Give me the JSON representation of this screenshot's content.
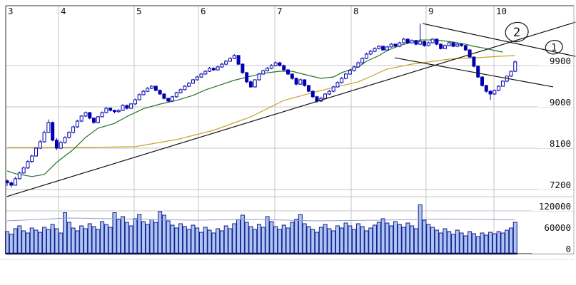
{
  "chart_data": {
    "type": "candlestick",
    "title": "",
    "legend": "none",
    "grid": true,
    "x_axis": {
      "unit": "month",
      "ticks": [
        {
          "label": "3",
          "index": -0.35
        },
        {
          "label": "4",
          "index": 12.44
        },
        {
          "label": "5",
          "index": 30.76
        },
        {
          "label": "6",
          "index": 46.31
        },
        {
          "label": "7",
          "index": 64.8
        },
        {
          "label": "8",
          "index": 83.29
        },
        {
          "label": "9",
          "index": 101.43
        },
        {
          "label": "10",
          "index": 117.85
        }
      ]
    },
    "price_axis": {
      "ticks": [
        9900,
        9000,
        8100,
        7200
      ],
      "visible_range": [
        7050,
        11200
      ]
    },
    "volume_axis": {
      "ticks": [
        120000,
        60000,
        0
      ],
      "visible_range": [
        0,
        160000
      ]
    },
    "candles": [
      [
        7390,
        7420,
        7280,
        7345
      ],
      [
        7345,
        7380,
        7250,
        7295
      ],
      [
        7295,
        7475,
        7290,
        7435
      ],
      [
        7435,
        7590,
        7420,
        7560
      ],
      [
        7560,
        7700,
        7540,
        7670
      ],
      [
        7670,
        7840,
        7650,
        7810
      ],
      [
        7810,
        7960,
        7780,
        7930
      ],
      [
        7930,
        8120,
        7910,
        8100
      ],
      [
        8100,
        8280,
        8080,
        8240
      ],
      [
        8240,
        8480,
        8220,
        8445
      ],
      [
        8445,
        8725,
        8430,
        8660
      ],
      [
        8660,
        8680,
        8250,
        8275
      ],
      [
        8275,
        8320,
        8060,
        8100
      ],
      [
        8100,
        8260,
        8080,
        8225
      ],
      [
        8225,
        8360,
        8200,
        8335
      ],
      [
        8335,
        8470,
        8310,
        8445
      ],
      [
        8445,
        8590,
        8420,
        8565
      ],
      [
        8565,
        8720,
        8540,
        8690
      ],
      [
        8690,
        8820,
        8670,
        8800
      ],
      [
        8800,
        8900,
        8780,
        8875
      ],
      [
        8875,
        8890,
        8730,
        8755
      ],
      [
        8755,
        8770,
        8630,
        8660
      ],
      [
        8660,
        8800,
        8640,
        8785
      ],
      [
        8785,
        8900,
        8770,
        8875
      ],
      [
        8875,
        9000,
        8860,
        8970
      ],
      [
        8970,
        8990,
        8900,
        8925
      ],
      [
        8925,
        8940,
        8860,
        8895
      ],
      [
        8895,
        8950,
        8870,
        8925
      ],
      [
        8925,
        9060,
        8910,
        9030
      ],
      [
        9030,
        9050,
        8940,
        8970
      ],
      [
        8970,
        9080,
        8950,
        9065
      ],
      [
        9065,
        9180,
        9040,
        9155
      ],
      [
        9155,
        9290,
        9140,
        9265
      ],
      [
        9265,
        9370,
        9250,
        9340
      ],
      [
        9340,
        9430,
        9320,
        9405
      ],
      [
        9405,
        9470,
        9390,
        9450
      ],
      [
        9450,
        9460,
        9340,
        9360
      ],
      [
        9360,
        9380,
        9260,
        9280
      ],
      [
        9280,
        9300,
        9160,
        9185
      ],
      [
        9185,
        9200,
        9100,
        9125
      ],
      [
        9125,
        9240,
        9110,
        9220
      ],
      [
        9220,
        9330,
        9200,
        9310
      ],
      [
        9310,
        9400,
        9290,
        9375
      ],
      [
        9375,
        9470,
        9360,
        9450
      ],
      [
        9450,
        9540,
        9430,
        9515
      ],
      [
        9515,
        9610,
        9500,
        9590
      ],
      [
        9590,
        9680,
        9570,
        9650
      ],
      [
        9650,
        9740,
        9630,
        9715
      ],
      [
        9715,
        9800,
        9700,
        9775
      ],
      [
        9775,
        9870,
        9760,
        9840
      ],
      [
        9840,
        9860,
        9780,
        9805
      ],
      [
        9805,
        9900,
        9790,
        9870
      ],
      [
        9870,
        9960,
        9850,
        9930
      ],
      [
        9930,
        10020,
        9910,
        9995
      ],
      [
        9995,
        10080,
        9980,
        10055
      ],
      [
        10055,
        10150,
        10040,
        10120
      ],
      [
        10120,
        10130,
        9910,
        9930
      ],
      [
        9930,
        9950,
        9720,
        9745
      ],
      [
        9745,
        9760,
        9520,
        9545
      ],
      [
        9545,
        9580,
        9410,
        9435
      ],
      [
        9435,
        9600,
        9420,
        9590
      ],
      [
        9590,
        9740,
        9570,
        9715
      ],
      [
        9715,
        9810,
        9700,
        9790
      ],
      [
        9790,
        9870,
        9770,
        9840
      ],
      [
        9840,
        9930,
        9820,
        9900
      ],
      [
        9900,
        9990,
        9880,
        9960
      ],
      [
        9960,
        9980,
        9880,
        9900
      ],
      [
        9900,
        9920,
        9780,
        9805
      ],
      [
        9805,
        9830,
        9690,
        9715
      ],
      [
        9715,
        9730,
        9590,
        9620
      ],
      [
        9620,
        9640,
        9470,
        9495
      ],
      [
        9495,
        9620,
        9480,
        9590
      ],
      [
        9590,
        9600,
        9440,
        9465
      ],
      [
        9465,
        9480,
        9320,
        9340
      ],
      [
        9340,
        9360,
        9190,
        9220
      ],
      [
        9220,
        9240,
        9090,
        9125
      ],
      [
        9125,
        9220,
        9110,
        9185
      ],
      [
        9185,
        9300,
        9170,
        9280
      ],
      [
        9280,
        9370,
        9260,
        9340
      ],
      [
        9340,
        9460,
        9320,
        9435
      ],
      [
        9435,
        9560,
        9420,
        9530
      ],
      [
        9530,
        9650,
        9510,
        9620
      ],
      [
        9620,
        9740,
        9600,
        9715
      ],
      [
        9715,
        9820,
        9700,
        9790
      ],
      [
        9790,
        9900,
        9770,
        9870
      ],
      [
        9870,
        9990,
        9850,
        9960
      ],
      [
        9960,
        10080,
        9940,
        10055
      ],
      [
        10055,
        10180,
        10040,
        10150
      ],
      [
        10150,
        10240,
        10130,
        10210
      ],
      [
        10210,
        10300,
        10190,
        10270
      ],
      [
        10270,
        10340,
        10250,
        10320
      ],
      [
        10320,
        10330,
        10220,
        10240
      ],
      [
        10240,
        10330,
        10220,
        10305
      ],
      [
        10305,
        10390,
        10290,
        10365
      ],
      [
        10365,
        10380,
        10300,
        10320
      ],
      [
        10320,
        10420,
        10300,
        10395
      ],
      [
        10395,
        10500,
        10380,
        10475
      ],
      [
        10475,
        10490,
        10370,
        10395
      ],
      [
        10395,
        10470,
        10380,
        10445
      ],
      [
        10445,
        10460,
        10340,
        10365
      ],
      [
        10365,
        10815,
        10350,
        10425
      ],
      [
        10425,
        10440,
        10310,
        10335
      ],
      [
        10335,
        10420,
        10320,
        10395
      ],
      [
        10395,
        10490,
        10380,
        10475
      ],
      [
        10475,
        10490,
        10340,
        10365
      ],
      [
        10365,
        10380,
        10250,
        10270
      ],
      [
        10270,
        10360,
        10255,
        10335
      ],
      [
        10335,
        10420,
        10320,
        10395
      ],
      [
        10395,
        10410,
        10300,
        10320
      ],
      [
        10320,
        10380,
        10300,
        10365
      ],
      [
        10365,
        10380,
        10310,
        10335
      ],
      [
        10335,
        10350,
        10220,
        10240
      ],
      [
        10240,
        10260,
        10060,
        10085
      ],
      [
        10085,
        10100,
        9860,
        9885
      ],
      [
        9885,
        9900,
        9630,
        9650
      ],
      [
        9650,
        9670,
        9440,
        9465
      ],
      [
        9465,
        9480,
        9310,
        9340
      ],
      [
        9340,
        9360,
        9155,
        9280
      ],
      [
        9280,
        9380,
        9260,
        9360
      ],
      [
        9360,
        9470,
        9340,
        9450
      ],
      [
        9450,
        9580,
        9440,
        9560
      ],
      [
        9560,
        9680,
        9540,
        9670
      ],
      [
        9670,
        9790,
        9650,
        9775
      ],
      [
        9775,
        10010,
        9760,
        9980
      ]
    ],
    "volume": [
      62000,
      55000,
      70000,
      78000,
      64000,
      58000,
      72000,
      66000,
      60000,
      74000,
      68000,
      82000,
      70000,
      58000,
      115000,
      88000,
      72000,
      64000,
      78000,
      70000,
      84000,
      76000,
      68000,
      90000,
      82000,
      74000,
      115000,
      96000,
      104000,
      88000,
      78000,
      98000,
      110000,
      90000,
      82000,
      96000,
      88000,
      118000,
      108000,
      92000,
      80000,
      72000,
      84000,
      76000,
      68000,
      80000,
      72000,
      60000,
      74000,
      66000,
      58000,
      70000,
      64000,
      78000,
      70000,
      84000,
      96000,
      108000,
      88000,
      76000,
      68000,
      82000,
      74000,
      104000,
      90000,
      76000,
      68000,
      80000,
      72000,
      88000,
      96000,
      110000,
      84000,
      76000,
      68000,
      60000,
      74000,
      82000,
      70000,
      64000,
      78000,
      72000,
      86000,
      78000,
      68000,
      84000,
      76000,
      64000,
      72000,
      80000,
      88000,
      98000,
      86000,
      78000,
      90000,
      82000,
      74000,
      86000,
      78000,
      70000,
      137000,
      94000,
      82000,
      74000,
      66000,
      58000,
      70000,
      62000,
      54000,
      66000,
      58000,
      50000,
      62000,
      56000,
      48000,
      58000,
      52000,
      60000,
      56000,
      62000,
      58000,
      66000,
      72000,
      88000
    ],
    "ma_short": {
      "name": "short moving average",
      "points": [
        [
          0,
          7605
        ],
        [
          2,
          7544
        ],
        [
          6,
          7482
        ],
        [
          9,
          7529
        ],
        [
          12,
          7792
        ],
        [
          16,
          8071
        ],
        [
          19,
          8335
        ],
        [
          22,
          8536
        ],
        [
          26,
          8640
        ],
        [
          29,
          8790
        ],
        [
          33,
          8960
        ],
        [
          37,
          9060
        ],
        [
          41,
          9140
        ],
        [
          45,
          9250
        ],
        [
          48,
          9370
        ],
        [
          52,
          9490
        ],
        [
          55,
          9580
        ],
        [
          59,
          9668
        ],
        [
          62,
          9730
        ],
        [
          66,
          9776
        ],
        [
          69,
          9776
        ],
        [
          73,
          9683
        ],
        [
          76,
          9621
        ],
        [
          79,
          9652
        ],
        [
          81,
          9745
        ],
        [
          85,
          9869
        ],
        [
          87,
          9993
        ],
        [
          90,
          10117
        ],
        [
          92,
          10226
        ],
        [
          95,
          10334
        ],
        [
          98,
          10412
        ],
        [
          100,
          10458
        ],
        [
          103,
          10458
        ],
        [
          105,
          10443
        ],
        [
          108,
          10412
        ],
        [
          111,
          10365
        ],
        [
          113,
          10319
        ],
        [
          116,
          10272
        ],
        [
          118,
          10226
        ],
        [
          120,
          10195
        ]
      ]
    },
    "ma_long": {
      "name": "long moving average",
      "points": [
        [
          0,
          8117
        ],
        [
          9,
          8117
        ],
        [
          19,
          8117
        ],
        [
          31,
          8133
        ],
        [
          41,
          8288
        ],
        [
          50,
          8490
        ],
        [
          59,
          8784
        ],
        [
          67,
          9141
        ],
        [
          76,
          9358
        ],
        [
          85,
          9544
        ],
        [
          92,
          9823
        ],
        [
          98,
          9931
        ],
        [
          107,
          10040
        ],
        [
          114,
          10071
        ],
        [
          119,
          10102
        ],
        [
          123,
          10117
        ]
      ]
    },
    "volume_ma": {
      "name": "volume reference line",
      "points": [
        [
          0,
          92000
        ],
        [
          15,
          100000
        ],
        [
          30,
          97000
        ],
        [
          45,
          94000
        ],
        [
          60,
          96000
        ],
        [
          75,
          92000
        ],
        [
          90,
          94000
        ],
        [
          105,
          97000
        ],
        [
          123,
          95000
        ]
      ]
    },
    "trendlines": [
      {
        "name": "ascending-support",
        "from": [
          0,
          7050
        ],
        "to": [
          137.6,
          10845
        ]
      },
      {
        "name": "descending-channel-upper",
        "from": [
          100.6,
          10815
        ],
        "to": [
          137.6,
          10100
        ]
      },
      {
        "name": "descending-channel-lower",
        "from": [
          93.8,
          10070
        ],
        "to": [
          132.2,
          9435
        ]
      }
    ],
    "annotations": [
      {
        "label": "2",
        "shape": "hand-drawn-circle",
        "index": 123.4,
        "price": 10630
      },
      {
        "label": "1",
        "shape": "hand-drawn-circle",
        "index": 132.4,
        "price": 10300
      }
    ],
    "colors": {
      "candle": "#0000b0",
      "candle_up_fill": "#ffffff",
      "volume_fill": "#aac6f2",
      "volume_stroke": "#1a1a8c",
      "volume_baseline": "#0a0a50",
      "ma_short": "#267326",
      "ma_long": "#c9a227",
      "volume_ma": "#8e9fce",
      "grid": "#c6c6c6",
      "border_dark": "#333333",
      "border_light": "#b5b5b5",
      "trendline": "#111111",
      "label": "#111111"
    }
  }
}
